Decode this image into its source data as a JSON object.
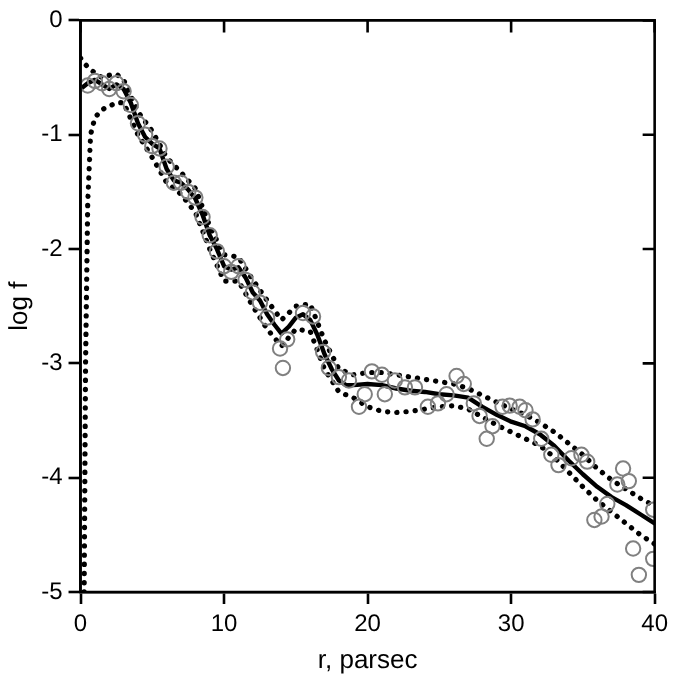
{
  "chart_data": {
    "type": "line",
    "xlabel": "r, parsec",
    "ylabel": "log f",
    "xlim": [
      0,
      40
    ],
    "xticks": [
      0,
      10,
      20,
      30,
      40
    ],
    "ylim": [
      -5,
      0
    ],
    "yticks": [
      -5,
      -4,
      -3,
      -2,
      -1,
      0
    ],
    "grid": false,
    "legend": false,
    "series": [
      {
        "type": "scatter",
        "color": "#808080",
        "marker": "circle",
        "x": [
          0.5,
          1,
          1.5,
          2,
          2.5,
          3,
          3.5,
          4,
          4.5,
          5,
          5.5,
          6,
          6.5,
          7,
          7.5,
          8,
          8.5,
          9,
          9.5,
          10,
          10.5,
          11,
          11.5,
          12,
          12.5,
          13,
          13.9,
          14.1,
          14.4,
          15.5,
          16.2,
          16.9,
          17.3,
          18,
          18.7,
          19.4,
          19.8,
          20.3,
          21,
          21.2,
          21.9,
          22.6,
          23.3,
          24.2,
          24.9,
          25.5,
          26.2,
          26.7,
          27.4,
          27.8,
          28.3,
          28.7,
          29.4,
          29.9,
          30.6,
          31,
          31.5,
          32.1,
          32.8,
          33.3,
          34.2,
          34.9,
          35.3,
          35.8,
          36.3,
          36.7,
          37.4,
          37.8,
          38.2,
          38.5,
          38.9,
          39.9,
          39.9
        ],
        "values": [
          -0.57,
          -0.53,
          -0.55,
          -0.6,
          -0.55,
          -0.62,
          -0.74,
          -0.9,
          -1.0,
          -1.1,
          -1.12,
          -1.28,
          -1.42,
          -1.42,
          -1.5,
          -1.55,
          -1.72,
          -1.88,
          -2.02,
          -2.15,
          -2.2,
          -2.15,
          -2.27,
          -2.38,
          -2.47,
          -2.6,
          -2.87,
          -3.04,
          -2.79,
          -2.56,
          -2.59,
          -2.9,
          -3.04,
          -3.12,
          -3.15,
          -3.38,
          -3.27,
          -3.07,
          -3.1,
          -3.27,
          -3.15,
          -3.21,
          -3.21,
          -3.38,
          -3.35,
          -3.27,
          -3.11,
          -3.18,
          -3.35,
          -3.46,
          -3.66,
          -3.55,
          -3.38,
          -3.37,
          -3.38,
          -3.41,
          -3.49,
          -3.66,
          -3.8,
          -3.89,
          -3.83,
          -3.8,
          -3.86,
          -4.37,
          -4.34,
          -4.23,
          -4.06,
          -3.92,
          -4.03,
          -4.62,
          -4.85,
          -4.71,
          -4.28
        ]
      },
      {
        "type": "line",
        "color": "#000000",
        "line_style": "solid",
        "marker": "none",
        "x": [
          0,
          0.5,
          1,
          1.5,
          2,
          2.5,
          3,
          3.5,
          4,
          4.5,
          5,
          5.5,
          6,
          6.5,
          7,
          7.5,
          8,
          8.5,
          9,
          9.5,
          10,
          10.5,
          11,
          11.5,
          12,
          12.5,
          13,
          13.5,
          14,
          14.5,
          15,
          15.5,
          16,
          16.5,
          17,
          17.5,
          18,
          18.5,
          19,
          20,
          21,
          22,
          23,
          24,
          25,
          26,
          27,
          28,
          29,
          30,
          31,
          32,
          33,
          34,
          35,
          36,
          37,
          38,
          39,
          40
        ],
        "values": [
          -0.6,
          -0.55,
          -0.52,
          -0.56,
          -0.6,
          -0.56,
          -0.6,
          -0.72,
          -0.9,
          -1.02,
          -1.08,
          -1.12,
          -1.3,
          -1.4,
          -1.42,
          -1.48,
          -1.56,
          -1.7,
          -1.88,
          -2.0,
          -2.15,
          -2.18,
          -2.16,
          -2.25,
          -2.38,
          -2.45,
          -2.57,
          -2.66,
          -2.74,
          -2.68,
          -2.6,
          -2.57,
          -2.62,
          -2.75,
          -2.92,
          -3.05,
          -3.15,
          -3.19,
          -3.19,
          -3.18,
          -3.19,
          -3.22,
          -3.24,
          -3.25,
          -3.27,
          -3.28,
          -3.3,
          -3.38,
          -3.45,
          -3.51,
          -3.55,
          -3.62,
          -3.72,
          -3.85,
          -3.97,
          -4.08,
          -4.17,
          -4.24,
          -4.32,
          -4.4
        ]
      },
      {
        "type": "line",
        "color": "#000000",
        "line_style": "dotted",
        "marker": "none",
        "x": [
          0,
          0.3,
          0.6,
          1,
          1.5,
          2,
          2.5,
          3,
          4,
          5,
          6,
          7,
          8,
          9,
          10,
          11,
          12,
          13,
          14,
          15,
          16,
          17,
          18,
          19,
          20,
          21,
          22,
          23,
          24,
          25,
          26,
          27,
          28,
          29,
          30,
          31,
          32,
          33,
          34,
          35,
          36,
          37,
          38,
          39,
          40
        ],
        "values": [
          -0.33,
          -0.38,
          -0.42,
          -0.46,
          -0.5,
          -0.48,
          -0.47,
          -0.52,
          -0.8,
          -0.97,
          -1.2,
          -1.33,
          -1.47,
          -1.8,
          -2.05,
          -2.07,
          -2.27,
          -2.45,
          -2.62,
          -2.5,
          -2.48,
          -2.8,
          -3.05,
          -3.1,
          -3.08,
          -3.08,
          -3.1,
          -3.12,
          -3.14,
          -3.16,
          -3.18,
          -3.22,
          -3.28,
          -3.34,
          -3.4,
          -3.45,
          -3.52,
          -3.6,
          -3.7,
          -3.8,
          -3.92,
          -4.02,
          -4.1,
          -4.18,
          -4.25
        ]
      },
      {
        "type": "line",
        "color": "#000000",
        "line_style": "dotted",
        "marker": "none",
        "x": [
          0.25,
          0.35,
          0.5,
          0.7,
          1,
          1.5,
          2,
          2.5,
          3,
          4,
          5,
          6,
          7,
          8,
          9,
          10,
          11,
          12,
          13,
          14,
          15,
          16,
          17,
          18,
          19,
          20,
          21,
          22,
          23,
          24,
          25,
          26,
          27,
          28,
          29,
          30,
          31,
          32,
          33,
          34,
          35,
          36,
          37,
          38,
          39,
          40
        ],
        "values": [
          -5,
          -3,
          -1.6,
          -1.0,
          -0.85,
          -0.78,
          -0.75,
          -0.72,
          -0.72,
          -1.0,
          -1.2,
          -1.42,
          -1.52,
          -1.68,
          -2.0,
          -2.28,
          -2.28,
          -2.5,
          -2.7,
          -2.85,
          -2.7,
          -2.72,
          -3.05,
          -3.25,
          -3.3,
          -3.38,
          -3.42,
          -3.43,
          -3.42,
          -3.4,
          -3.38,
          -3.37,
          -3.4,
          -3.47,
          -3.54,
          -3.6,
          -3.66,
          -3.72,
          -3.82,
          -3.95,
          -4.08,
          -4.2,
          -4.3,
          -4.4,
          -4.5,
          -4.58
        ]
      }
    ]
  }
}
